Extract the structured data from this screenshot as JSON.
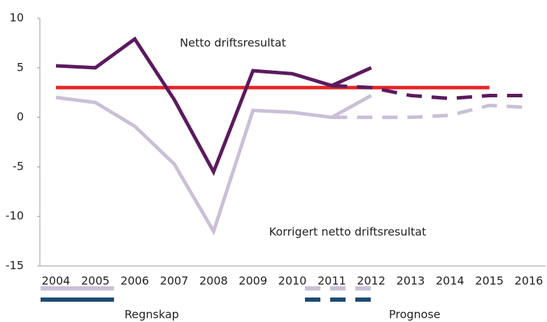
{
  "chart_data": {
    "type": "line",
    "categories": [
      "2004",
      "2005",
      "2006",
      "2007",
      "2008",
      "2009",
      "2010",
      "2011",
      "2012",
      "2013",
      "2014",
      "2015",
      "2016"
    ],
    "series": [
      {
        "color": "#e42525",
        "dash": false,
        "values": [
          3,
          3,
          3,
          3,
          3,
          3,
          3,
          3,
          3,
          3,
          3,
          3,
          null
        ]
      },
      {
        "color": "#cbbfd7",
        "dash": false,
        "values": [
          2.0,
          1.5,
          -0.9,
          -4.7,
          -11.5,
          0.7,
          0.5,
          0.0,
          2.2,
          null,
          null,
          null,
          null
        ]
      },
      {
        "color": "#cbbfd7",
        "dash": true,
        "values": [
          null,
          null,
          null,
          null,
          null,
          null,
          null,
          0.0,
          0.0,
          0.0,
          0.2,
          1.2,
          1.0
        ]
      },
      {
        "color": "#5b1a5e",
        "dash": false,
        "values": [
          5.2,
          5.0,
          7.9,
          1.8,
          -5.5,
          4.7,
          4.4,
          3.2,
          5.0,
          null,
          null,
          null,
          null
        ]
      },
      {
        "color": "#5b1a5e",
        "dash": true,
        "values": [
          null,
          null,
          null,
          null,
          null,
          null,
          null,
          3.2,
          3.0,
          2.2,
          1.9,
          2.2,
          2.2
        ]
      }
    ],
    "annotations": [
      "Netto driftsresultat",
      "Korrigert netto driftsresultat"
    ],
    "ylim": [
      -15,
      10
    ],
    "yticks": [
      -15,
      -10,
      -5,
      0,
      5,
      10
    ],
    "grid": false,
    "legend": [
      {
        "label": "Regnskap",
        "dash": false
      },
      {
        "label": "Prognose",
        "dash": true
      }
    ],
    "legend_colors": [
      "#cbbfd7",
      "#1b4a72"
    ]
  }
}
